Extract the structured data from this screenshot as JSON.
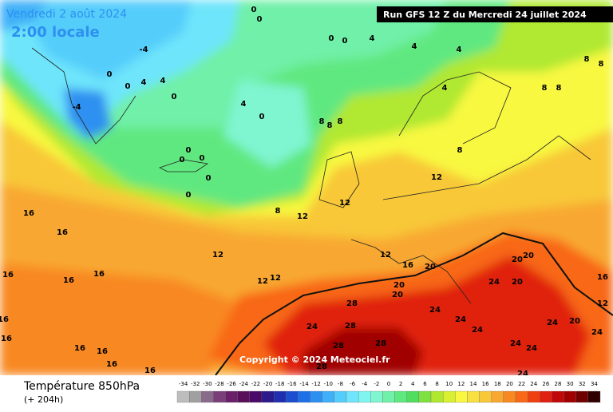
{
  "header": {
    "valid_date": "Vendredi 2 août 2024",
    "local_time": "2:00 locale",
    "run": "Run GFS 12 Z du Mercredi 24 juillet 2024"
  },
  "copyright": "Copyright © 2024 Meteociel.fr",
  "footer": {
    "title": "Température 850hPa",
    "lead": "(+ 204h)"
  },
  "scale": {
    "labels": [
      -34,
      -32,
      -30,
      -28,
      -26,
      -24,
      -22,
      -20,
      -18,
      -16,
      -14,
      -12,
      -10,
      -8,
      -6,
      -4,
      -2,
      0,
      2,
      4,
      6,
      8,
      10,
      12,
      14,
      16,
      18,
      20,
      22,
      24,
      26,
      28,
      30,
      32,
      34
    ],
    "colors": [
      "#bdbdbd",
      "#a0a0a0",
      "#8a6a8a",
      "#7a3f7a",
      "#6a1f6a",
      "#5a0f5a",
      "#4a0a6a",
      "#2a1a8a",
      "#1f2fb0",
      "#1c4fd0",
      "#1e70e8",
      "#2d90f0",
      "#3fb0f8",
      "#55cdfb",
      "#6ee5fb",
      "#7ff5f0",
      "#7ff5d0",
      "#70f0a8",
      "#60e880",
      "#50dd60",
      "#80e040",
      "#b0e830",
      "#d8f030",
      "#f8f840",
      "#f8e040",
      "#f8c838",
      "#f8a830",
      "#f88820",
      "#f86818",
      "#f04010",
      "#e02010",
      "#c00808",
      "#a00000",
      "#700000",
      "#300000"
    ]
  },
  "map_labels": [
    "0",
    "0",
    "0",
    "0",
    "4",
    "4",
    "4",
    "8",
    "8",
    "8",
    "8",
    "4",
    "4",
    "0",
    "8",
    "8",
    "8",
    "8",
    "12",
    "12",
    "8",
    "12",
    "-4",
    "-4",
    "0",
    "0",
    "4",
    "4",
    "0",
    "0",
    "0",
    "0",
    "0",
    "0",
    "16",
    "16",
    "16",
    "16",
    "16",
    "16",
    "16",
    "16",
    "16",
    "16",
    "16",
    "12",
    "12",
    "12",
    "12",
    "16",
    "20",
    "20",
    "20",
    "20",
    "20",
    "24",
    "20",
    "24",
    "24",
    "24",
    "24",
    "20",
    "24",
    "24",
    "24",
    "24",
    "28",
    "28",
    "24",
    "28",
    "28",
    "28",
    "16",
    "12"
  ]
}
